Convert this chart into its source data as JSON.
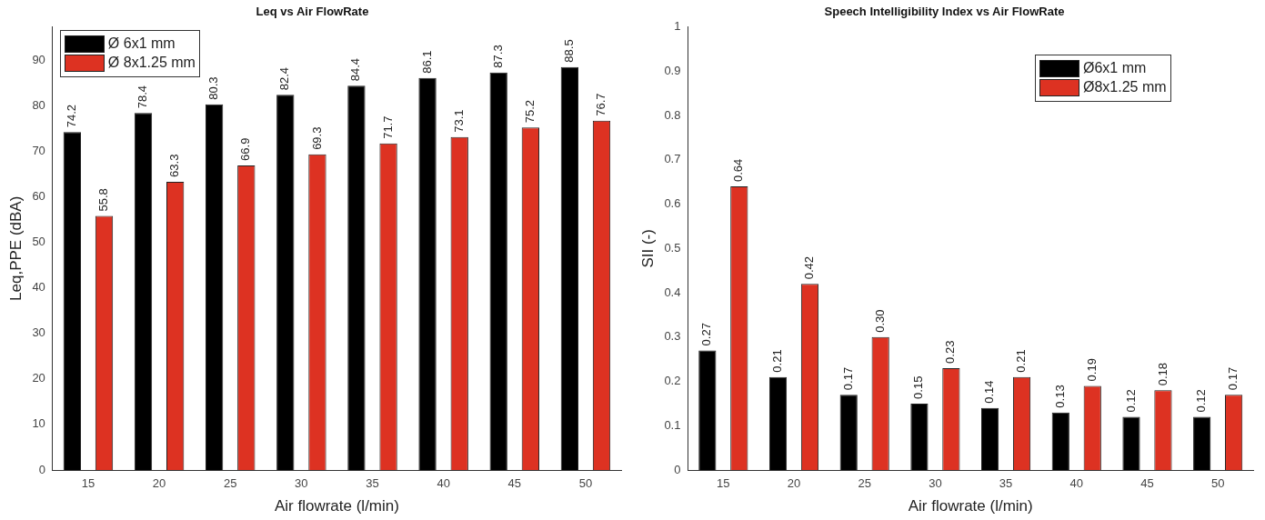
{
  "chart_data": [
    {
      "type": "bar",
      "title": "Leq vs Air FlowRate",
      "xlabel": "Air flowrate (l/min)",
      "ylabel": "Leq,PPE (dBA)",
      "categories": [
        "15",
        "20",
        "25",
        "30",
        "35",
        "40",
        "45",
        "50"
      ],
      "series": [
        {
          "name": "Ø 6x1 mm",
          "color": "#000000",
          "values": [
            74.2,
            78.4,
            80.3,
            82.4,
            84.4,
            86.1,
            87.3,
            88.5
          ]
        },
        {
          "name": "Ø 8x1.25 mm",
          "color": "#dd3222",
          "values": [
            55.8,
            63.3,
            66.9,
            69.3,
            71.7,
            73.1,
            75.2,
            76.7
          ]
        }
      ],
      "ylim": [
        0,
        97.3
      ],
      "yticks": [
        0,
        10,
        20,
        30,
        40,
        50,
        60,
        70,
        80,
        90
      ],
      "grid": false,
      "legend": "top left",
      "data_labels": true
    },
    {
      "type": "bar",
      "title": "Speech Intelligibility Index vs Air FlowRate",
      "xlabel": "Air flowrate (l/min)",
      "ylabel": "SII (-)",
      "categories": [
        "15",
        "20",
        "25",
        "30",
        "35",
        "40",
        "45",
        "50"
      ],
      "series": [
        {
          "name": "Ø6x1 mm",
          "color": "#000000",
          "values": [
            0.27,
            0.21,
            0.17,
            0.15,
            0.14,
            0.13,
            0.12,
            0.12
          ],
          "value_labels": [
            "0.27",
            "0.21",
            "0.17",
            "0.15",
            "0.14",
            "0.13",
            "0.12",
            "0.12"
          ]
        },
        {
          "name": "Ø8x1.25 mm",
          "color": "#dd3222",
          "values": [
            0.64,
            0.42,
            0.3,
            0.23,
            0.21,
            0.19,
            0.18,
            0.17
          ],
          "value_labels": [
            "0.64",
            "0.42",
            "0.30",
            "0.23",
            "0.21",
            "0.19",
            "0.18",
            "0.17"
          ]
        }
      ],
      "ylim": [
        0,
        1
      ],
      "yticks": [
        0,
        0.1,
        0.2,
        0.3,
        0.4,
        0.5,
        0.6,
        0.7,
        0.8,
        0.9,
        1
      ],
      "grid": false,
      "legend": "top right"
    }
  ]
}
